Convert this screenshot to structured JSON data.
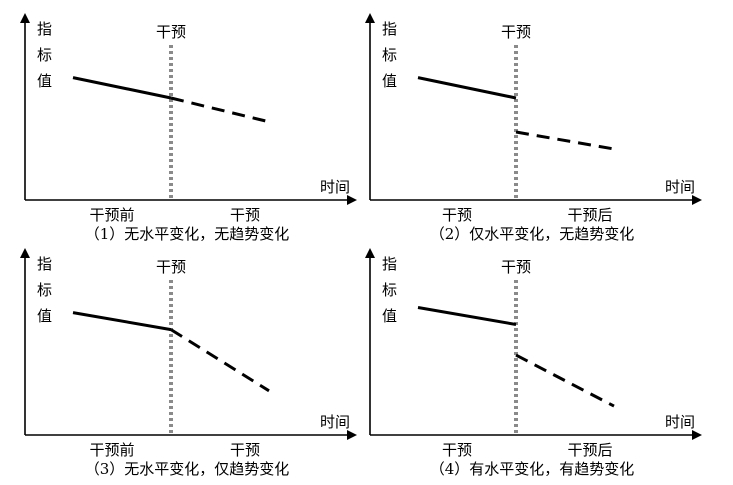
{
  "labels": {
    "y_axis": [
      "指",
      "标",
      "值"
    ],
    "intervention": "干预",
    "x_axis": "时间"
  },
  "colors": {
    "line": "#000000",
    "intervention_line": "#8a8a8a"
  },
  "panels": [
    {
      "id": "p1",
      "caption": "（1）无水平变化，无趋势变化",
      "bottom_left": "干预前",
      "bottom_right": "干预",
      "pre": [
        [
          0.0,
          0.72
        ],
        [
          1.0,
          0.6
        ]
      ],
      "post": [
        [
          1.0,
          0.6
        ],
        [
          2.0,
          0.46
        ]
      ]
    },
    {
      "id": "p2",
      "caption": "（2）仅水平变化，无趋势变化",
      "bottom_left": "干预",
      "bottom_right": "干预后",
      "pre": [
        [
          0.0,
          0.72
        ],
        [
          1.0,
          0.6
        ]
      ],
      "post": [
        [
          1.0,
          0.4
        ],
        [
          2.0,
          0.3
        ]
      ]
    },
    {
      "id": "p3",
      "caption": "（3）无水平变化，仅趋势变化",
      "bottom_left": "干预前",
      "bottom_right": "干预",
      "pre": [
        [
          0.0,
          0.72
        ],
        [
          1.0,
          0.62
        ]
      ],
      "post": [
        [
          1.0,
          0.62
        ],
        [
          2.0,
          0.26
        ]
      ]
    },
    {
      "id": "p4",
      "caption": "（4）有水平变化，有趋势变化",
      "bottom_left": "干预",
      "bottom_right": "干预后",
      "pre": [
        [
          0.0,
          0.75
        ],
        [
          1.0,
          0.65
        ]
      ],
      "post": [
        [
          1.0,
          0.47
        ],
        [
          2.0,
          0.17
        ]
      ]
    }
  ]
}
